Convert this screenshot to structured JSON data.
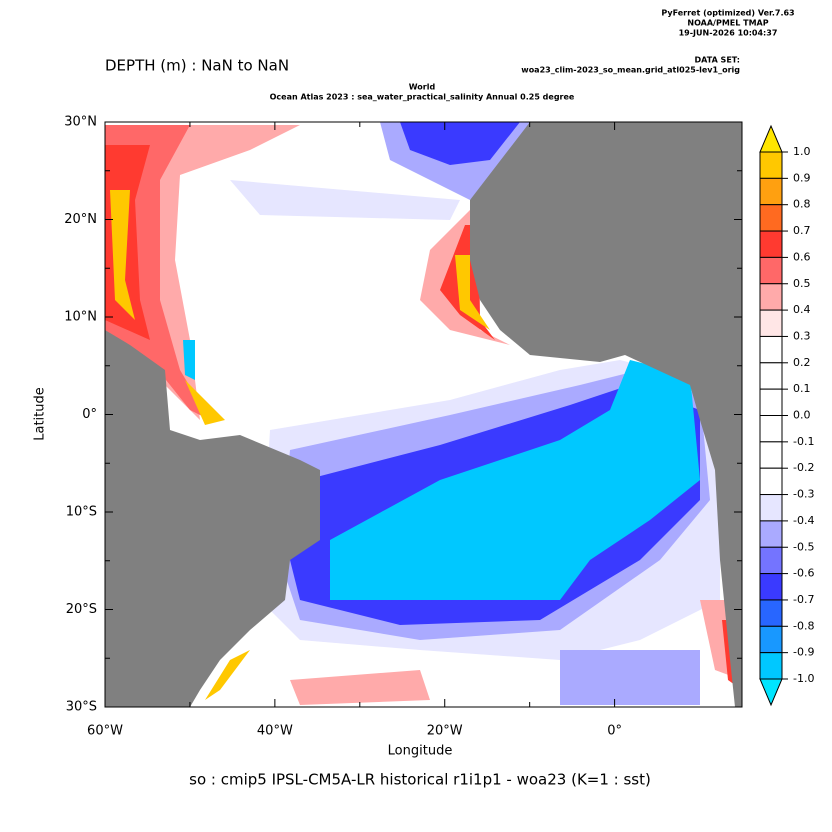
{
  "header": {
    "software": "PyFerret (optimized) Ver.7.63",
    "org": "NOAA/PMEL TMAP",
    "timestamp": "19-JUN-2026 10:04:37",
    "dataset_label": "DATA SET:",
    "dataset": "woa23_clim-2023_so_mean.grid_atl025-lev1_orig",
    "depth": "DEPTH (m) : NaN to NaN",
    "subtitle_1": "World",
    "subtitle_2": "Ocean Atlas 2023 : sea_water_practical_salinity Annual  0.25 degree"
  },
  "chart_data": {
    "type": "map",
    "title": "so : cmip5 IPSL-CM5A-LR historical r1i1p1 - woa23  (K=1 : sst)",
    "xlabel": "Longitude",
    "ylabel": "Latitude",
    "land_color": "#808080",
    "xlim": [
      -60,
      15
    ],
    "ylim": [
      -30,
      30
    ],
    "xticks": [
      {
        "value": -60,
        "label": "60°W"
      },
      {
        "value": -40,
        "label": "40°W"
      },
      {
        "value": -20,
        "label": "20°W"
      },
      {
        "value": 0,
        "label": "0°"
      }
    ],
    "yticks": [
      {
        "value": 30,
        "label": "30°N"
      },
      {
        "value": 20,
        "label": "20°N"
      },
      {
        "value": 10,
        "label": "10°N"
      },
      {
        "value": 0,
        "label": "0°"
      },
      {
        "value": -10,
        "label": "10°S"
      },
      {
        "value": -20,
        "label": "20°S"
      },
      {
        "value": -30,
        "label": "30°S"
      }
    ]
  },
  "colorbar": {
    "over_color": "#ffe600",
    "under_color": "#00e5ff",
    "levels": [
      {
        "value": 1,
        "label": "1.0"
      },
      {
        "value": 0.9,
        "label": "0.9"
      },
      {
        "value": 0.8,
        "label": "0.8"
      },
      {
        "value": 0.7,
        "label": "0.7"
      },
      {
        "value": 0.6,
        "label": "0.6"
      },
      {
        "value": 0.5,
        "label": "0.5"
      },
      {
        "value": 0.4,
        "label": "0.4"
      },
      {
        "value": 0.3,
        "label": "0.3"
      },
      {
        "value": 0.2,
        "label": "0.2"
      },
      {
        "value": 0.1,
        "label": "0.1"
      },
      {
        "value": 0,
        "label": "0.0"
      },
      {
        "value": -0.1,
        "label": "-0.1"
      },
      {
        "value": -0.2,
        "label": "-0.2"
      },
      {
        "value": -0.3,
        "label": "-0.3"
      },
      {
        "value": -0.4,
        "label": "-0.4"
      },
      {
        "value": -0.5,
        "label": "-0.5"
      },
      {
        "value": -0.6,
        "label": "-0.6"
      },
      {
        "value": -0.7,
        "label": "-0.7"
      },
      {
        "value": -0.8,
        "label": "-0.8"
      },
      {
        "value": -0.9,
        "label": "-0.9"
      },
      {
        "value": -1,
        "label": "-1.0"
      }
    ],
    "colors": [
      "#ffc800",
      "#ffa010",
      "#ff6a20",
      "#ff3a30",
      "#ff6868",
      "#ffaaaa",
      "#ffe6e6",
      "#ffffff",
      "#ffffff",
      "#ffffff",
      "#ffffff",
      "#ffffff",
      "#ffffff",
      "#e6e6ff",
      "#aaaaff",
      "#7474ff",
      "#3a3aff",
      "#2866ff",
      "#1898ff",
      "#00c8ff"
    ]
  }
}
